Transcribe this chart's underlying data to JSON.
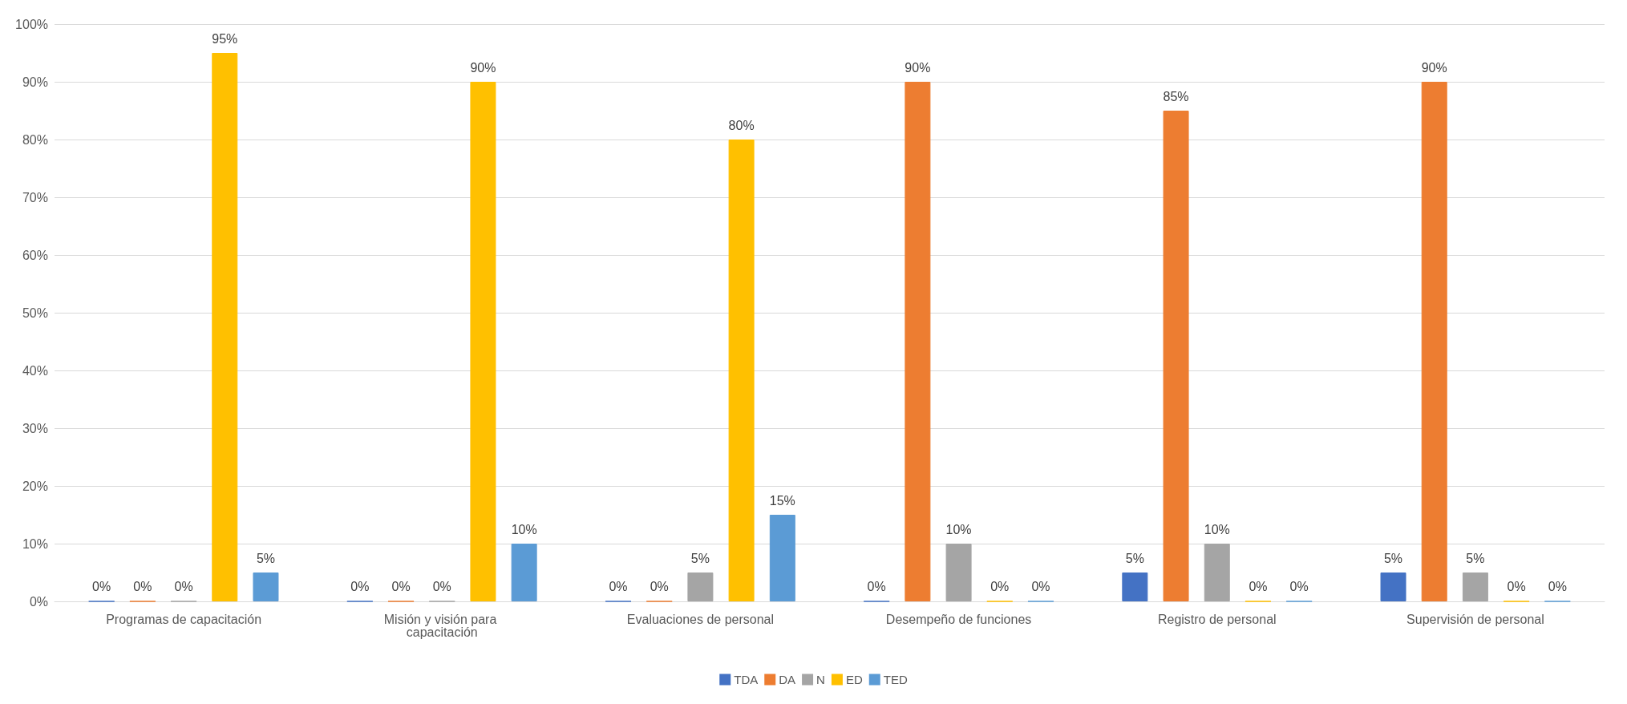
{
  "chart_data": {
    "type": "bar",
    "categories": [
      "Programas de capacitación",
      "Misión y visión para capacitación",
      "Evaluaciones de personal",
      "Desempeño de funciones",
      "Registro de personal",
      "Supervisión de personal"
    ],
    "series": [
      {
        "name": "TDA",
        "color": "#4472c4",
        "values": [
          0,
          0,
          0,
          0,
          5,
          5
        ],
        "value_labels": [
          "0%",
          "0%",
          "0%",
          "0%",
          "5%",
          "5%"
        ]
      },
      {
        "name": "DA",
        "color": "#ed7d31",
        "values": [
          0,
          0,
          0,
          90,
          85,
          90
        ],
        "value_labels": [
          "0%",
          "0%",
          "0%",
          "90%",
          "85%",
          "90%"
        ]
      },
      {
        "name": "N",
        "color": "#a5a5a5",
        "values": [
          0,
          0,
          5,
          10,
          10,
          5
        ],
        "value_labels": [
          "0%",
          "0%",
          "5%",
          "10%",
          "10%",
          "5%"
        ]
      },
      {
        "name": "ED",
        "color": "#ffc000",
        "values": [
          95,
          90,
          80,
          0,
          0,
          0
        ],
        "value_labels": [
          "95%",
          "90%",
          "80%",
          "0%",
          "0%",
          "0%"
        ]
      },
      {
        "name": "TED",
        "color": "#5b9bd5",
        "values": [
          5,
          10,
          15,
          0,
          0,
          0
        ],
        "value_labels": [
          "5%",
          "10%",
          "15%",
          "0%",
          "0%",
          "0%"
        ]
      }
    ],
    "ylim": [
      0,
      100
    ],
    "yticks": [
      {
        "value": 0,
        "label": "0%"
      },
      {
        "value": 10,
        "label": "10%"
      },
      {
        "value": 20,
        "label": "20%"
      },
      {
        "value": 30,
        "label": "30%"
      },
      {
        "value": 40,
        "label": "40%"
      },
      {
        "value": 50,
        "label": "50%"
      },
      {
        "value": 60,
        "label": "60%"
      },
      {
        "value": 70,
        "label": "70%"
      },
      {
        "value": 80,
        "label": "80%"
      },
      {
        "value": 90,
        "label": "90%"
      },
      {
        "value": 100,
        "label": "100%"
      }
    ],
    "grid": "y",
    "legend": "bottom"
  }
}
